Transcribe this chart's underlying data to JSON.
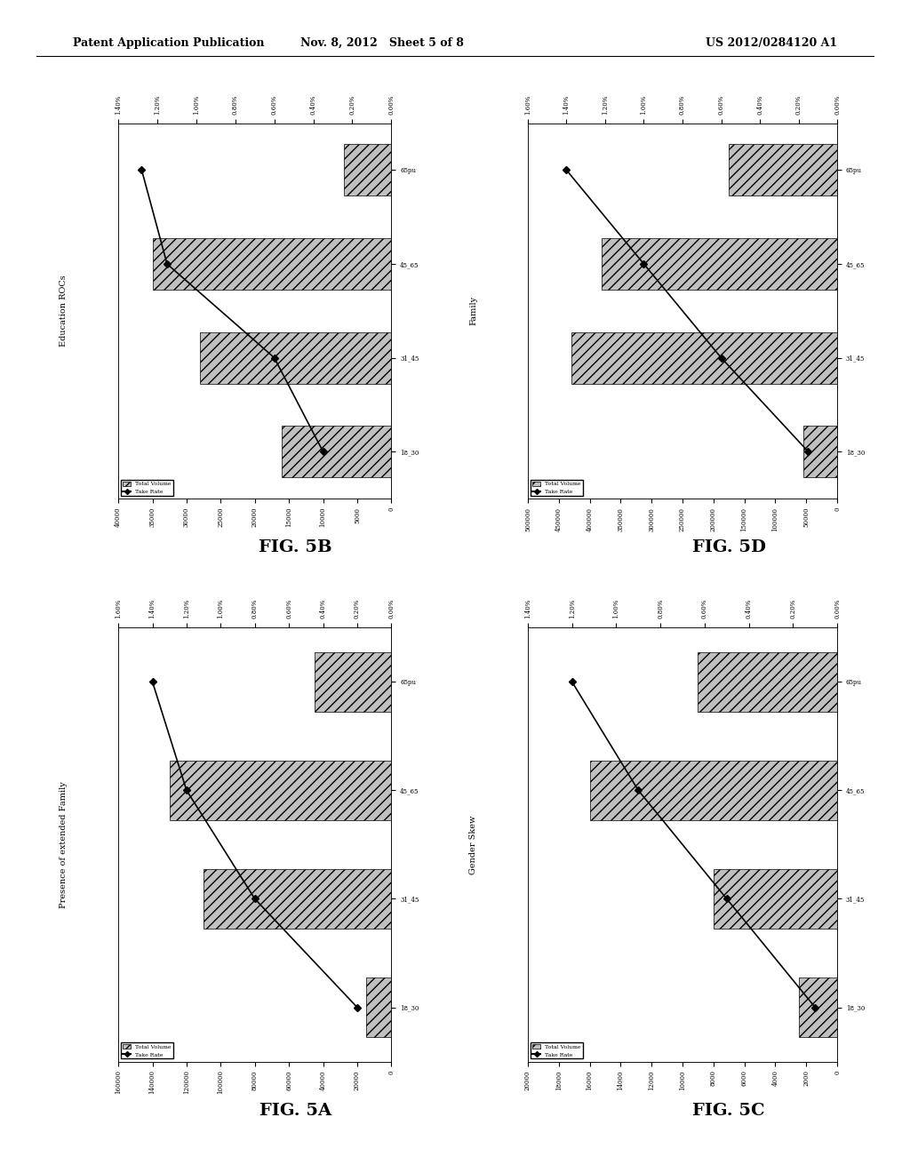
{
  "header_left": "Patent Application Publication",
  "header_mid": "Nov. 8, 2012   Sheet 5 of 8",
  "header_right": "US 2012/0284120 A1",
  "fig5b": {
    "title": "Education ROCs",
    "categories": [
      "18_30",
      "31_45",
      "45_65",
      "65pu"
    ],
    "bar_values": [
      16000,
      28000,
      35000,
      7000
    ],
    "take_rate": [
      0.0035,
      0.006,
      0.0115,
      0.0128
    ],
    "xlim": [
      40000,
      0
    ],
    "x_ticks": [
      40000,
      35000,
      30000,
      25000,
      20000,
      15000,
      10000,
      5000,
      0
    ],
    "x_labels": [
      "40000",
      "35000",
      "30000",
      "25000",
      "20000",
      "15000",
      "10000",
      "5000",
      "0"
    ],
    "y2xlim": [
      0.0,
      0.014
    ],
    "y2_ticks": [
      0.0,
      0.002,
      0.004,
      0.006,
      0.008,
      0.01,
      0.012,
      0.014
    ],
    "y2_labels": [
      "0.00%",
      "0.20%",
      "0.40%",
      "0.60%",
      "0.80%",
      "1.00%",
      "1.20%",
      "1.40%"
    ],
    "legend_bar": "Total Volume",
    "legend_line": "Take Rate"
  },
  "fig5d": {
    "title": "Family",
    "categories": [
      "18_30",
      "31_45",
      "45_65",
      "65pu"
    ],
    "bar_values": [
      55000,
      430000,
      380000,
      175000
    ],
    "take_rate": [
      0.0015,
      0.006,
      0.01,
      0.014
    ],
    "xlim": [
      500000,
      0
    ],
    "x_ticks": [
      500000,
      450000,
      400000,
      350000,
      300000,
      250000,
      200000,
      150000,
      100000,
      50000,
      0
    ],
    "x_labels": [
      "500000",
      "450000",
      "400000",
      "350000",
      "300000",
      "250000",
      "200000",
      "150000",
      "100000",
      "50000",
      "0"
    ],
    "y2xlim": [
      0.0,
      0.016
    ],
    "y2_ticks": [
      0.0,
      0.002,
      0.004,
      0.006,
      0.008,
      0.01,
      0.012,
      0.014,
      0.016
    ],
    "y2_labels": [
      "0.00%",
      "0.20%",
      "0.40%",
      "0.60%",
      "0.80%",
      "1.00%",
      "1.20%",
      "1.40%",
      "1.60%"
    ],
    "legend_bar": "Total Volume",
    "legend_line": "Take Rate"
  },
  "fig5a": {
    "title": "Presence of extended Family",
    "categories": [
      "18_30",
      "31_45",
      "45_65",
      "65pu"
    ],
    "bar_values": [
      15000,
      110000,
      130000,
      45000
    ],
    "take_rate": [
      0.002,
      0.008,
      0.012,
      0.014
    ],
    "xlim": [
      160000,
      0
    ],
    "x_ticks": [
      160000,
      140000,
      120000,
      100000,
      80000,
      60000,
      40000,
      20000,
      0
    ],
    "x_labels": [
      "160000",
      "140000",
      "120000",
      "100000",
      "80000",
      "60000",
      "40000",
      "20000",
      "0"
    ],
    "y2xlim": [
      0.0,
      0.016
    ],
    "y2_ticks": [
      0.0,
      0.002,
      0.004,
      0.006,
      0.008,
      0.01,
      0.012,
      0.014,
      0.016
    ],
    "y2_labels": [
      "0.00%",
      "0.20%",
      "0.40%",
      "0.60%",
      "0.80%",
      "1.00%",
      "1.20%",
      "1.40%",
      "1.60%"
    ],
    "legend_bar": "Total Volume",
    "legend_line": "Take Rate"
  },
  "fig5c": {
    "title": "Gender Skew",
    "categories": [
      "18_30",
      "31_45",
      "45_65",
      "65pu"
    ],
    "bar_values": [
      2500,
      8000,
      16000,
      9000
    ],
    "take_rate": [
      0.001,
      0.005,
      0.009,
      0.012
    ],
    "xlim": [
      20000,
      0
    ],
    "x_ticks": [
      20000,
      18000,
      16000,
      14000,
      12000,
      10000,
      8000,
      6000,
      4000,
      2000,
      0
    ],
    "x_labels": [
      "20000",
      "18000",
      "16000",
      "14000",
      "12000",
      "10000",
      "8000",
      "6000",
      "4000",
      "2000",
      "0"
    ],
    "y2xlim": [
      0.0,
      0.014
    ],
    "y2_ticks": [
      0.0,
      0.002,
      0.004,
      0.006,
      0.008,
      0.01,
      0.012,
      0.014
    ],
    "y2_labels": [
      "0.00%",
      "0.20%",
      "0.40%",
      "0.60%",
      "0.80%",
      "1.00%",
      "1.20%",
      "1.40%"
    ],
    "legend_bar": "Total Volume",
    "legend_line": "Take Rate"
  },
  "bar_hatch": "///",
  "bar_color": "#c0c0c0",
  "bar_edgecolor": "#000000",
  "line_color": "#000000",
  "marker": "D",
  "marker_size": 4,
  "background_color": "#ffffff",
  "fig_label_fontsize": 14,
  "tick_fontsize": 5,
  "title_fontsize": 7
}
